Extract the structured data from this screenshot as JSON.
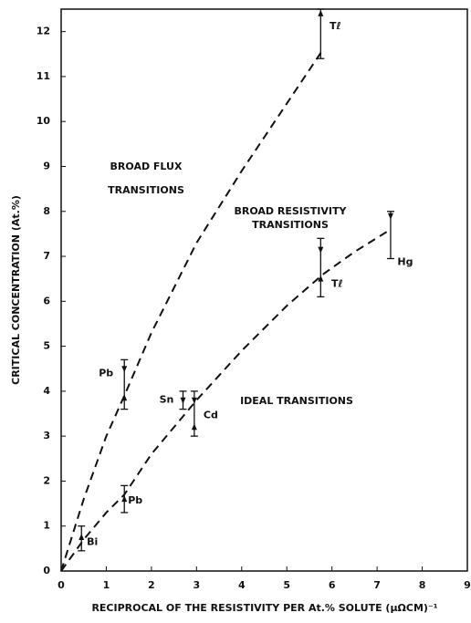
{
  "chart_data": {
    "type": "line",
    "x_label": "RECIPROCAL OF THE RESISTIVITY PER At.% SOLUTE (μΩCM)⁻¹",
    "y_label": "CRITICAL CONCENTRATION (At.%)",
    "xlim": [
      0,
      9
    ],
    "ylim": [
      0,
      12.5
    ],
    "xticks": [
      0,
      1,
      2,
      3,
      4,
      5,
      6,
      7,
      8,
      9
    ],
    "yticks": [
      0,
      1,
      2,
      3,
      4,
      5,
      6,
      7,
      8,
      9,
      10,
      11,
      12
    ],
    "grid": false,
    "series": [
      {
        "color": "#111111",
        "dashed": true,
        "x": [
          0,
          0.5,
          1,
          1.4,
          2,
          3,
          4,
          5,
          5.8
        ],
        "values": [
          0,
          1.6,
          3.0,
          3.9,
          5.3,
          7.3,
          8.9,
          10.4,
          11.6
        ]
      },
      {
        "color": "#111111",
        "dashed": true,
        "x": [
          0,
          0.5,
          1,
          1.4,
          2,
          3,
          4,
          5,
          5.8,
          6.5,
          7.3
        ],
        "values": [
          0,
          0.7,
          1.3,
          1.7,
          2.6,
          3.8,
          4.9,
          5.9,
          6.6,
          7.1,
          7.6
        ]
      }
    ],
    "error_bars": [
      {
        "label": "Bi",
        "x": 0.45,
        "low": 0.45,
        "high": 1.0,
        "markers": [
          {
            "value": 0.75,
            "dir": "up"
          }
        ]
      },
      {
        "label": "Pb",
        "x": 1.4,
        "low": 1.3,
        "high": 1.9,
        "markers": [
          {
            "value": 1.6,
            "dir": "up"
          }
        ]
      },
      {
        "label": "Pb",
        "x": 1.4,
        "low": 3.6,
        "high": 4.7,
        "markers": [
          {
            "value": 4.5,
            "dir": "down"
          },
          {
            "value": 3.85,
            "dir": "up"
          }
        ]
      },
      {
        "label": "Sn",
        "x": 2.7,
        "low": 3.6,
        "high": 4.0,
        "markers": [
          {
            "value": 3.8,
            "dir": "down"
          }
        ]
      },
      {
        "label": "Cd",
        "x": 2.95,
        "low": 3.0,
        "high": 4.0,
        "markers": [
          {
            "value": 3.8,
            "dir": "down"
          },
          {
            "value": 3.2,
            "dir": "up"
          }
        ]
      },
      {
        "label": "Tℓ",
        "x": 5.75,
        "low": 6.1,
        "high": 7.4,
        "markers": [
          {
            "value": 7.15,
            "dir": "down"
          },
          {
            "value": 6.5,
            "dir": "up"
          }
        ]
      },
      {
        "label": "Tℓ",
        "x": 5.75,
        "low": 11.4,
        "high": 12.5,
        "markers": [
          {
            "value": 12.4,
            "dir": "up"
          }
        ]
      },
      {
        "label": "Hg",
        "x": 7.3,
        "low": 6.95,
        "high": 8.0,
        "markers": [
          {
            "value": 7.9,
            "dir": "down"
          }
        ]
      }
    ],
    "annotations": [
      [
        "BROAD FLUX",
        "TRANSITIONS"
      ],
      [
        "BROAD RESISTIVITY",
        "TRANSITIONS"
      ],
      [
        "IDEAL TRANSITIONS"
      ]
    ]
  }
}
